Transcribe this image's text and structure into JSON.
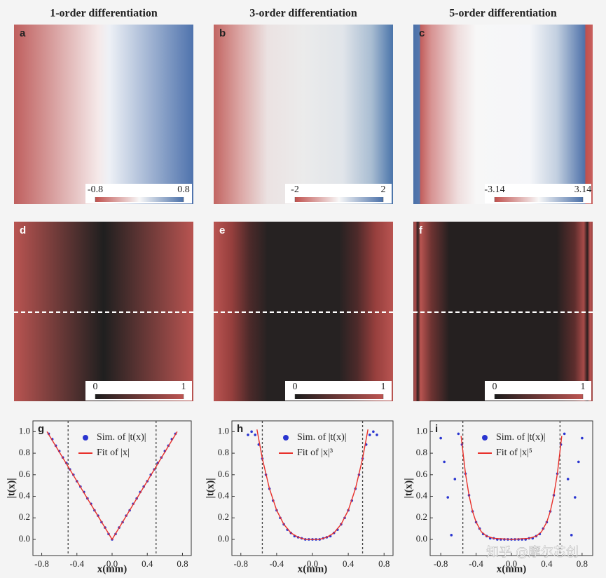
{
  "chart_data": [
    {
      "type": "heatmap",
      "title": "1-order differentiation",
      "label": "a",
      "colorbar": {
        "lim": [
          -0.8,
          0.8
        ],
        "ticks": [
          -0.8,
          0.8
        ]
      }
    },
    {
      "type": "heatmap",
      "title": "3-order differentiation",
      "label": "b",
      "colorbar": {
        "lim": [
          -2,
          2
        ],
        "ticks": [
          -2,
          2
        ]
      }
    },
    {
      "type": "heatmap",
      "title": "5-order differentiation",
      "label": "c",
      "colorbar": {
        "lim": [
          -3.14,
          3.14
        ],
        "ticks": [
          -3.14,
          3.14
        ]
      }
    },
    {
      "type": "heatmap",
      "label": "d",
      "colorbar": {
        "lim": [
          0,
          1
        ],
        "ticks": [
          0,
          1
        ]
      }
    },
    {
      "type": "heatmap",
      "label": "e",
      "colorbar": {
        "lim": [
          0,
          1
        ],
        "ticks": [
          0,
          1
        ]
      }
    },
    {
      "type": "heatmap",
      "label": "f",
      "colorbar": {
        "lim": [
          0,
          1
        ],
        "ticks": [
          0,
          1
        ]
      }
    },
    {
      "type": "scatter",
      "label": "g",
      "xlabel": "x(mm)",
      "ylabel": "|t(x)|",
      "legend": "upper center",
      "xlim": [
        -0.9,
        0.9
      ],
      "ylim": [
        -0.15,
        1.1
      ],
      "xticks": [
        -0.8,
        -0.4,
        {
          "value": 0,
          "label": "0.0"
        },
        0.4,
        0.8
      ],
      "yticks": [
        {
          "value": 0,
          "label": "0.0"
        },
        0.2,
        0.4,
        0.6,
        0.8,
        {
          "value": 1,
          "label": "1.0"
        }
      ],
      "vlines": [
        -0.5,
        0.5
      ],
      "series": [
        {
          "name": "Sim. of |t(x)|",
          "color": "#2a35d0",
          "mode": "markers",
          "x": [
            -0.72,
            -0.68,
            -0.64,
            -0.6,
            -0.56,
            -0.52,
            -0.48,
            -0.44,
            -0.4,
            -0.36,
            -0.32,
            -0.28,
            -0.24,
            -0.2,
            -0.16,
            -0.12,
            -0.08,
            -0.04,
            0,
            0.04,
            0.08,
            0.12,
            0.16,
            0.2,
            0.24,
            0.28,
            0.32,
            0.36,
            0.4,
            0.44,
            0.48,
            0.52,
            0.56,
            0.6,
            0.64,
            0.68,
            0.72
          ],
          "values": [
            0.98,
            0.93,
            0.87,
            0.82,
            0.76,
            0.71,
            0.65,
            0.6,
            0.54,
            0.49,
            0.44,
            0.38,
            0.33,
            0.27,
            0.22,
            0.16,
            0.11,
            0.05,
            0,
            0.05,
            0.11,
            0.16,
            0.22,
            0.27,
            0.33,
            0.38,
            0.44,
            0.49,
            0.54,
            0.6,
            0.65,
            0.71,
            0.76,
            0.82,
            0.87,
            0.93,
            0.98
          ]
        },
        {
          "name": "Fit of |x|",
          "color": "#e8302a",
          "mode": "line",
          "x": [
            -0.74,
            0,
            0.74
          ],
          "values": [
            1,
            0,
            1
          ]
        }
      ]
    },
    {
      "type": "scatter",
      "label": "h",
      "xlabel": "x(mm)",
      "ylabel": "|t(x)|",
      "legend": "upper center",
      "xlim": [
        -0.9,
        0.9
      ],
      "ylim": [
        -0.15,
        1.1
      ],
      "xticks": [
        -0.8,
        -0.4,
        {
          "value": 0,
          "label": "0.0"
        },
        0.4,
        0.8
      ],
      "yticks": [
        {
          "value": 0,
          "label": "0.0"
        },
        0.2,
        0.4,
        0.6,
        0.8,
        {
          "value": 1,
          "label": "1.0"
        }
      ],
      "vlines": [
        -0.56,
        0.56
      ],
      "series": [
        {
          "name": "Sim. of |t(x)|",
          "color": "#2a35d0",
          "mode": "markers",
          "x": [
            -0.72,
            -0.68,
            -0.64,
            -0.6,
            -0.56,
            -0.52,
            -0.48,
            -0.44,
            -0.4,
            -0.36,
            -0.32,
            -0.28,
            -0.24,
            -0.2,
            -0.16,
            -0.12,
            -0.08,
            -0.04,
            0,
            0.04,
            0.08,
            0.12,
            0.16,
            0.2,
            0.24,
            0.28,
            0.32,
            0.36,
            0.4,
            0.44,
            0.48,
            0.52,
            0.56,
            0.6,
            0.64,
            0.68,
            0.72
          ],
          "values": [
            0.97,
            1,
            0.97,
            0.88,
            0.75,
            0.6,
            0.47,
            0.36,
            0.27,
            0.2,
            0.14,
            0.09,
            0.06,
            0.03,
            0.02,
            0.01,
            0,
            0,
            0,
            0,
            0,
            0.01,
            0.02,
            0.03,
            0.06,
            0.09,
            0.14,
            0.2,
            0.27,
            0.36,
            0.47,
            0.6,
            0.75,
            0.88,
            0.97,
            1,
            0.97
          ]
        },
        {
          "name": "Fit of |x|³",
          "color": "#e8302a",
          "mode": "line",
          "x": [
            -0.62,
            -0.56,
            -0.48,
            -0.4,
            -0.32,
            -0.24,
            -0.16,
            -0.08,
            0,
            0.08,
            0.16,
            0.24,
            0.32,
            0.4,
            0.48,
            0.56,
            0.62
          ],
          "values": [
            1.02,
            0.75,
            0.47,
            0.27,
            0.14,
            0.06,
            0.02,
            0,
            0,
            0,
            0.02,
            0.06,
            0.14,
            0.27,
            0.47,
            0.75,
            1.02
          ]
        }
      ]
    },
    {
      "type": "scatter",
      "label": "i",
      "xlabel": "x(mm)",
      "ylabel": "|t(x)|",
      "legend": "upper center",
      "xlim": [
        -0.92,
        0.92
      ],
      "ylim": [
        -0.15,
        1.1
      ],
      "xticks": [
        -0.8,
        -0.4,
        {
          "value": 0,
          "label": "0.0"
        },
        0.4,
        0.8
      ],
      "yticks": [
        {
          "value": 0,
          "label": "0.0"
        },
        0.2,
        0.4,
        0.6,
        0.8,
        {
          "value": 1,
          "label": "1.0"
        }
      ],
      "vlines": [
        -0.55,
        0.55
      ],
      "series": [
        {
          "name": "Sim. of |t(x)|",
          "color": "#2a35d0",
          "mode": "markers",
          "x": [
            -0.8,
            -0.76,
            -0.72,
            -0.68,
            -0.64,
            -0.6,
            -0.56,
            -0.52,
            -0.48,
            -0.44,
            -0.4,
            -0.36,
            -0.32,
            -0.28,
            -0.24,
            -0.2,
            -0.16,
            -0.12,
            -0.08,
            -0.04,
            0,
            0.04,
            0.08,
            0.12,
            0.16,
            0.2,
            0.24,
            0.28,
            0.32,
            0.36,
            0.4,
            0.44,
            0.48,
            0.52,
            0.56,
            0.6,
            0.64,
            0.68,
            0.72,
            0.76,
            0.8
          ],
          "values": [
            0.94,
            0.72,
            0.39,
            0.04,
            0.56,
            0.98,
            0.88,
            0.61,
            0.41,
            0.26,
            0.16,
            0.1,
            0.05,
            0.03,
            0.01,
            0.01,
            0,
            0,
            0,
            0,
            0,
            0,
            0,
            0,
            0,
            0.01,
            0.01,
            0.03,
            0.05,
            0.1,
            0.16,
            0.26,
            0.41,
            0.61,
            0.88,
            0.98,
            0.56,
            0.04,
            0.39,
            0.72,
            0.94
          ]
        },
        {
          "name": "Fit of |x|⁵",
          "color": "#e8302a",
          "mode": "line",
          "x": [
            -0.57,
            -0.52,
            -0.48,
            -0.44,
            -0.4,
            -0.34,
            -0.28,
            -0.2,
            0,
            0.2,
            0.28,
            0.34,
            0.4,
            0.44,
            0.48,
            0.52,
            0.57
          ],
          "values": [
            0.96,
            0.61,
            0.41,
            0.26,
            0.16,
            0.07,
            0.03,
            0.01,
            0,
            0.01,
            0.03,
            0.07,
            0.16,
            0.26,
            0.41,
            0.61,
            0.96
          ]
        }
      ]
    }
  ],
  "watermark": "知乎 @摩尔芯创"
}
